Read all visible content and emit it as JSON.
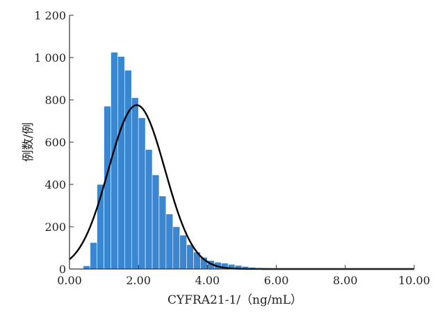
{
  "chart_data": {
    "type": "bar",
    "subtype": "histogram-with-normal-curve",
    "title": "",
    "xlabel": "CYFRA21-1/（ng/mL）",
    "ylabel": "例数/例",
    "xlim": [
      0,
      10
    ],
    "ylim": [
      0,
      1200
    ],
    "x_ticks": [
      0,
      2,
      4,
      6,
      8,
      10
    ],
    "x_tick_labels": [
      "0.00",
      "2.00",
      "4.00",
      "6.00",
      "8.00",
      "10.00"
    ],
    "y_ticks": [
      0,
      200,
      400,
      600,
      800,
      1000,
      1200
    ],
    "y_tick_labels": [
      "0",
      "200",
      "400",
      "600",
      "800",
      "1 000",
      "1 200"
    ],
    "grid": false,
    "bin_width": 0.2,
    "bins_start": [
      0.4,
      0.6,
      0.8,
      1.0,
      1.2,
      1.4,
      1.6,
      1.8,
      2.0,
      2.2,
      2.4,
      2.6,
      2.8,
      3.0,
      3.2,
      3.4,
      3.6,
      3.8,
      4.0,
      4.2,
      4.4,
      4.6,
      4.8,
      5.0,
      5.2,
      5.4,
      5.6,
      5.8,
      6.0
    ],
    "values": [
      15,
      125,
      400,
      770,
      1025,
      1005,
      940,
      810,
      715,
      565,
      445,
      345,
      260,
      200,
      160,
      115,
      80,
      55,
      40,
      32,
      28,
      22,
      17,
      12,
      8,
      6,
      5,
      4,
      3
    ],
    "normal_curve": {
      "mean": 1.95,
      "sd": 0.82,
      "peak": 775
    },
    "bar_color": "#3a86d0",
    "bar_edge_color": "#ffffff",
    "curve_color": "#000000"
  }
}
